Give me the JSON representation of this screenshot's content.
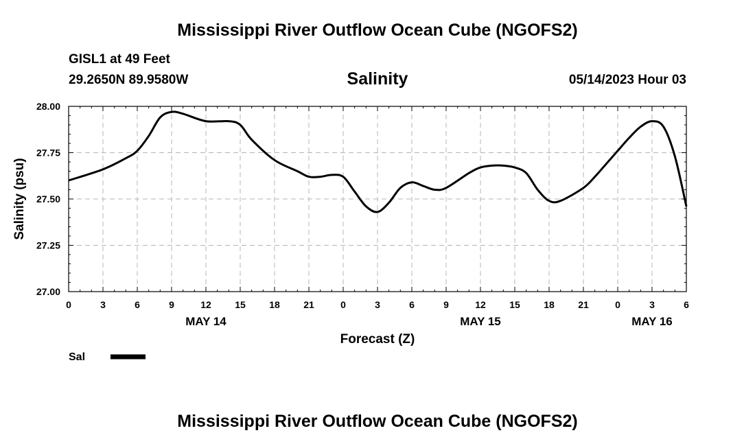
{
  "page": {
    "main_title": "Mississippi River Outflow Ocean Cube (NGOFS2)",
    "station": "GISL1 at 49 Feet",
    "coords": "29.2650N  89.9580W",
    "timestamp": "05/14/2023 Hour 03",
    "footer_title": "Mississippi River Outflow Ocean Cube (NGOFS2)"
  },
  "chart_data": {
    "type": "line",
    "title": "Salinity",
    "xlabel": "Forecast (Z)",
    "ylabel": "Salinity (psu)",
    "ylim": [
      27.0,
      28.0
    ],
    "xlim": [
      0,
      54
    ],
    "yticks": [
      "27.00",
      "27.25",
      "27.50",
      "27.75",
      "28.00"
    ],
    "ytick_values": [
      27.0,
      27.25,
      27.5,
      27.75,
      28.0
    ],
    "xtick_hours": [
      0,
      3,
      6,
      9,
      12,
      15,
      18,
      21,
      24,
      27,
      30,
      33,
      36,
      39,
      42,
      45,
      48,
      51,
      54
    ],
    "xtick_labels": [
      "0",
      "3",
      "6",
      "9",
      "12",
      "15",
      "18",
      "21",
      "0",
      "3",
      "6",
      "9",
      "12",
      "15",
      "18",
      "21",
      "0",
      "3",
      "6"
    ],
    "date_labels": [
      {
        "hour": 12,
        "label": "MAY 14"
      },
      {
        "hour": 36,
        "label": "MAY 15"
      },
      {
        "hour": 51,
        "label": "MAY 16"
      }
    ],
    "grid": true,
    "legend": {
      "label": "Sal",
      "position": "bottom-left"
    },
    "series": [
      {
        "name": "Sal",
        "color": "#000000",
        "x": [
          0,
          3,
          5,
          6,
          7,
          8,
          9,
          10,
          12,
          14,
          15,
          16,
          18,
          20,
          21,
          22,
          23,
          24,
          25,
          26,
          27,
          28,
          29,
          30,
          31,
          32,
          33,
          35,
          36,
          37,
          38,
          39,
          40,
          41,
          42,
          43,
          45,
          46,
          47,
          48,
          49,
          50,
          51,
          52,
          53,
          54
        ],
        "y": [
          27.6,
          27.66,
          27.72,
          27.76,
          27.84,
          27.94,
          27.97,
          27.96,
          27.92,
          27.92,
          27.9,
          27.82,
          27.71,
          27.65,
          27.62,
          27.62,
          27.63,
          27.62,
          27.54,
          27.46,
          27.43,
          27.48,
          27.56,
          27.59,
          27.57,
          27.55,
          27.56,
          27.64,
          27.67,
          27.68,
          27.68,
          27.67,
          27.64,
          27.55,
          27.49,
          27.49,
          27.56,
          27.62,
          27.69,
          27.76,
          27.83,
          27.89,
          27.92,
          27.89,
          27.73,
          27.46
        ]
      }
    ]
  }
}
